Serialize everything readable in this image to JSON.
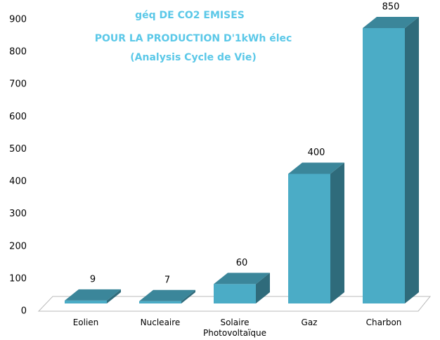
{
  "chart_data": {
    "type": "bar3d",
    "title": [
      "géq DE CO2 EMISES",
      "POUR LA PRODUCTION D'1kWh élec",
      "(Analysis Cycle de Vie)"
    ],
    "categories": [
      "Eolien",
      "Nucleaire",
      "Solaire Photovoltaïque",
      "Gaz",
      "Charbon"
    ],
    "values": [
      9,
      7,
      60,
      400,
      850
    ],
    "color": "#4bacc6",
    "ylim": [
      0,
      900
    ],
    "yticks": [
      0,
      100,
      200,
      300,
      400,
      500,
      600,
      700,
      800,
      900
    ]
  }
}
